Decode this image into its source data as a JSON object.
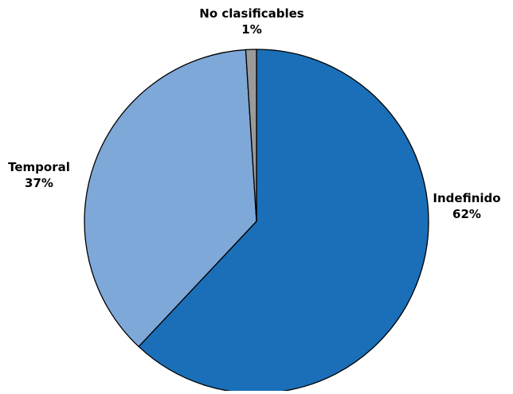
{
  "chart_data": {
    "type": "pie",
    "title": "",
    "slices": [
      {
        "label": "Indefinido",
        "value": 62,
        "value_label": "62%",
        "color": "#1a6fb8"
      },
      {
        "label": "Temporal",
        "value": 37,
        "value_label": "37%",
        "color": "#7ea8d8"
      },
      {
        "label": "No clasificables",
        "value": 1,
        "value_label": "1%",
        "color": "#9a9a9a"
      }
    ],
    "start": "12 o'clock",
    "direction": "clockwise",
    "slice_border_color": "#000000",
    "legend": "none",
    "label_placement": "outside"
  }
}
